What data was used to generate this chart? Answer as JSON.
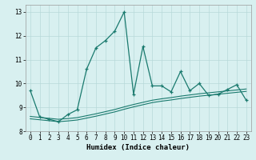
{
  "xlabel": "Humidex (Indice chaleur)",
  "xlim": [
    -0.5,
    23.5
  ],
  "ylim": [
    8,
    13.3
  ],
  "yticks": [
    8,
    9,
    10,
    11,
    12,
    13
  ],
  "xticks": [
    0,
    1,
    2,
    3,
    4,
    5,
    6,
    7,
    8,
    9,
    10,
    11,
    12,
    13,
    14,
    15,
    16,
    17,
    18,
    19,
    20,
    21,
    22,
    23
  ],
  "main_x": [
    0,
    1,
    2,
    3,
    4,
    5,
    6,
    7,
    8,
    9,
    10,
    11,
    12,
    13,
    14,
    15,
    16,
    17,
    18,
    19,
    20,
    21,
    22,
    23
  ],
  "main_y": [
    9.7,
    8.6,
    8.5,
    8.4,
    8.7,
    8.9,
    10.6,
    11.5,
    11.8,
    12.2,
    13.0,
    9.55,
    11.55,
    9.9,
    9.9,
    9.65,
    10.5,
    9.7,
    10.0,
    9.5,
    9.55,
    9.75,
    9.95,
    9.3
  ],
  "line2_x": [
    0,
    1,
    2,
    3,
    4,
    5,
    6,
    7,
    8,
    9,
    10,
    11,
    12,
    13,
    14,
    15,
    16,
    17,
    18,
    19,
    20,
    21,
    22,
    23
  ],
  "line2_y": [
    8.62,
    8.58,
    8.54,
    8.5,
    8.53,
    8.57,
    8.65,
    8.73,
    8.82,
    8.91,
    9.02,
    9.12,
    9.21,
    9.3,
    9.36,
    9.41,
    9.47,
    9.52,
    9.57,
    9.61,
    9.65,
    9.69,
    9.73,
    9.77
  ],
  "line3_x": [
    0,
    1,
    2,
    3,
    4,
    5,
    6,
    7,
    8,
    9,
    10,
    11,
    12,
    13,
    14,
    15,
    16,
    17,
    18,
    19,
    20,
    21,
    22,
    23
  ],
  "line3_y": [
    8.52,
    8.48,
    8.44,
    8.4,
    8.43,
    8.47,
    8.55,
    8.63,
    8.72,
    8.81,
    8.92,
    9.02,
    9.11,
    9.2,
    9.26,
    9.31,
    9.37,
    9.42,
    9.47,
    9.51,
    9.55,
    9.59,
    9.63,
    9.67
  ],
  "line_color": "#1a7a6e",
  "bg_color": "#d8f0f0",
  "grid_color": "#b8dada",
  "tick_fontsize": 5.5,
  "label_fontsize": 6.5
}
